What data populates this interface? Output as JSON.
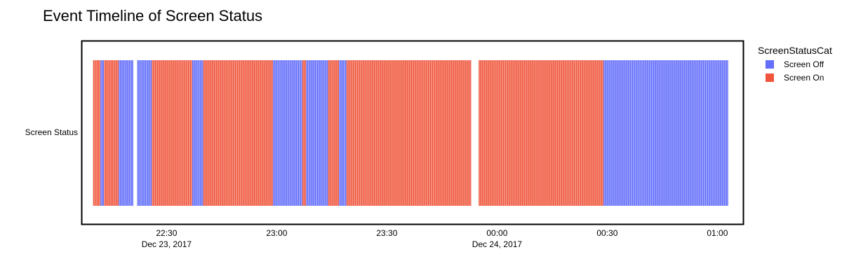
{
  "chart_data": {
    "type": "timeline",
    "title": "Event Timeline of Screen Status",
    "y_category": "Screen Status",
    "x_axis": {
      "range": [
        "2017-12-23 22:07",
        "2017-12-24 01:07"
      ],
      "ticks": [
        {
          "time": "2017-12-23 22:30",
          "label": "22:30",
          "sublabel": "Dec 23, 2017"
        },
        {
          "time": "2017-12-23 23:00",
          "label": "23:00",
          "sublabel": ""
        },
        {
          "time": "2017-12-23 23:30",
          "label": "23:30",
          "sublabel": ""
        },
        {
          "time": "2017-12-24 00:00",
          "label": "00:00",
          "sublabel": "Dec 24, 2017"
        },
        {
          "time": "2017-12-24 00:30",
          "label": "00:30",
          "sublabel": ""
        },
        {
          "time": "2017-12-24 01:00",
          "label": "01:00",
          "sublabel": ""
        }
      ]
    },
    "legend": {
      "title": "ScreenStatusCat",
      "position": "top-right",
      "items": [
        {
          "name": "Screen Off",
          "color": "#636efa"
        },
        {
          "name": "Screen On",
          "color": "#ef553b"
        }
      ]
    },
    "series": [
      {
        "name": "Screen Off",
        "color": "#636efa",
        "segments": [
          [
            "2017-12-23 22:12",
            "2017-12-23 22:13"
          ],
          [
            "2017-12-23 22:17",
            "2017-12-23 22:21"
          ],
          [
            "2017-12-23 22:22",
            "2017-12-23 22:26"
          ],
          [
            "2017-12-23 22:37",
            "2017-12-23 22:40"
          ],
          [
            "2017-12-23 22:59",
            "2017-12-23 23:07"
          ],
          [
            "2017-12-23 23:08",
            "2017-12-23 23:14"
          ],
          [
            "2017-12-23 23:17",
            "2017-12-23 23:19"
          ],
          [
            "2017-12-24 00:29",
            "2017-12-24 01:03"
          ]
        ]
      },
      {
        "name": "Screen On",
        "color": "#ef553b",
        "segments": [
          [
            "2017-12-23 22:10",
            "2017-12-23 22:12"
          ],
          [
            "2017-12-23 22:13",
            "2017-12-23 22:17"
          ],
          [
            "2017-12-23 22:26",
            "2017-12-23 22:37"
          ],
          [
            "2017-12-23 22:40",
            "2017-12-23 22:59"
          ],
          [
            "2017-12-23 23:07",
            "2017-12-23 23:08"
          ],
          [
            "2017-12-23 23:14",
            "2017-12-23 23:17"
          ],
          [
            "2017-12-23 23:19",
            "2017-12-23 23:53"
          ],
          [
            "2017-12-23 23:55",
            "2017-12-24 00:29"
          ]
        ]
      }
    ]
  }
}
